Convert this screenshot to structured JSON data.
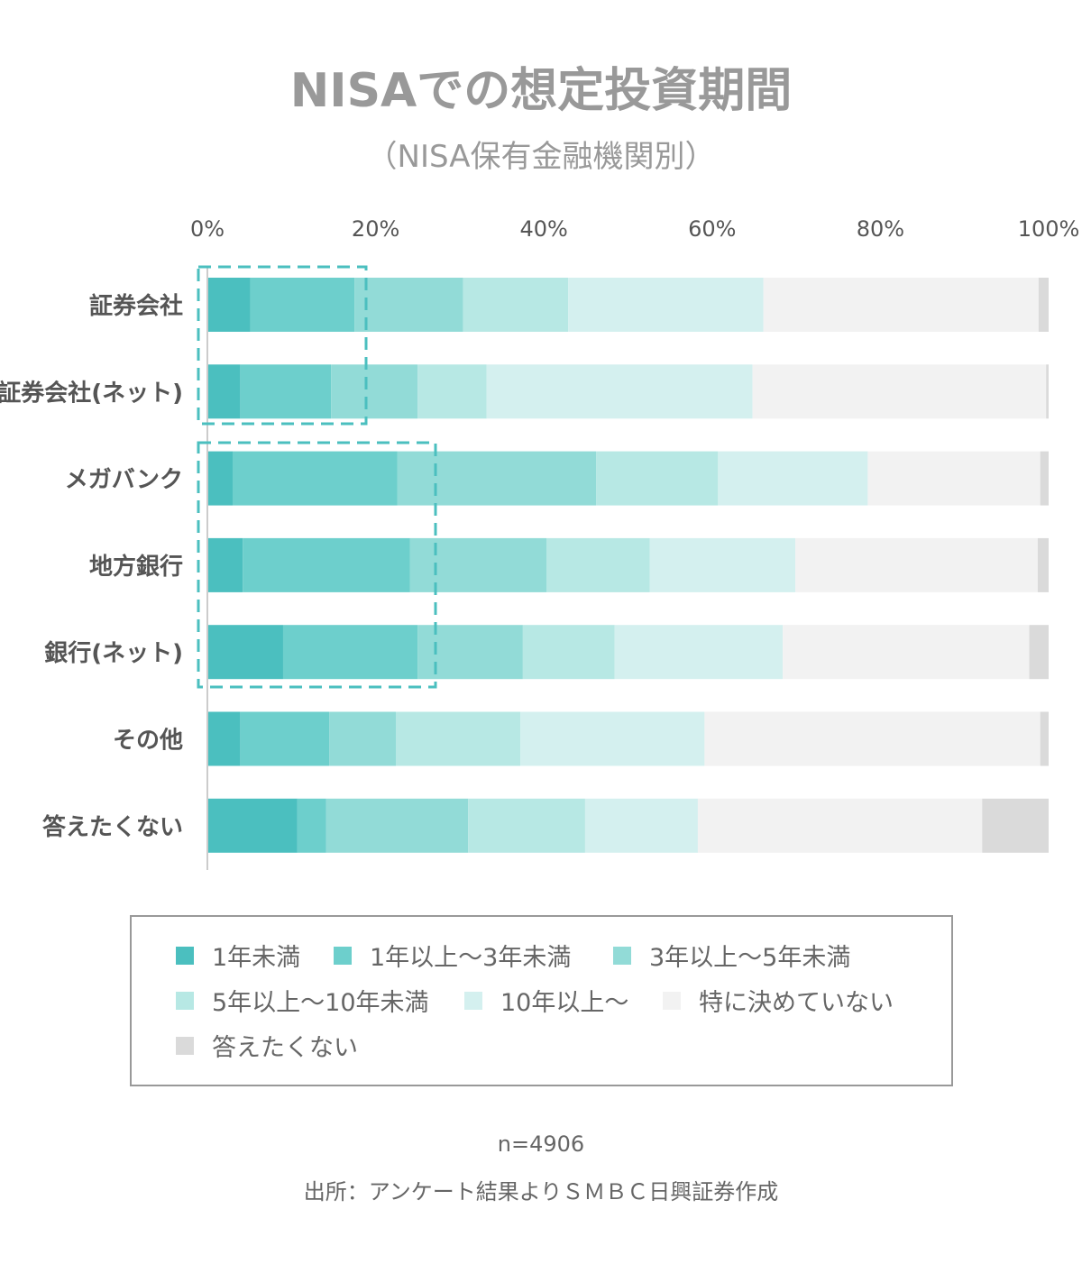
{
  "chart_data": {
    "type": "bar",
    "orientation": "horizontal",
    "stacked": true,
    "title": "NISAでの想定投資期間",
    "subtitle": "（NISA保有金融機関別）",
    "xlim": [
      0,
      100
    ],
    "xticks": [
      "0%",
      "20%",
      "40%",
      "60%",
      "80%",
      "100%"
    ],
    "categories": [
      "証券会社",
      "証券会社(ネット)",
      "メガバンク",
      "地方銀行",
      "銀行(ネット)",
      "その他",
      "答えたくない"
    ],
    "series": [
      {
        "name": "1年未満",
        "color": "#4bbfbf",
        "values": [
          5.1,
          3.9,
          3.0,
          4.2,
          9.0,
          3.9,
          10.7
        ]
      },
      {
        "name": "1年以上〜3年未満",
        "color": "#6dcfcc",
        "values": [
          12.4,
          10.8,
          19.6,
          19.9,
          16.0,
          10.6,
          3.4
        ]
      },
      {
        "name": "3年以上〜5年未満",
        "color": "#92dbd7",
        "values": [
          12.9,
          10.3,
          23.6,
          16.2,
          12.5,
          7.9,
          16.9
        ]
      },
      {
        "name": "5年以上〜10年未満",
        "color": "#b7e8e4",
        "values": [
          12.5,
          8.2,
          14.5,
          12.3,
          10.9,
          14.8,
          13.9
        ]
      },
      {
        "name": "10年以上〜",
        "color": "#d4f0ef",
        "values": [
          23.2,
          31.6,
          17.8,
          17.3,
          20.0,
          21.9,
          13.4
        ]
      },
      {
        "name": "特に決めていない",
        "color": "#f2f2f2",
        "values": [
          32.7,
          34.9,
          20.5,
          28.8,
          29.3,
          39.9,
          33.8
        ]
      },
      {
        "name": "答えたくない",
        "color": "#dadada",
        "values": [
          1.2,
          0.3,
          1.0,
          1.3,
          2.3,
          1.0,
          7.9
        ]
      }
    ],
    "legend_position": "bottom",
    "note": "n=4906",
    "source": "出所：アンケート結果よりＳＭＢＣ日興証券作成"
  }
}
